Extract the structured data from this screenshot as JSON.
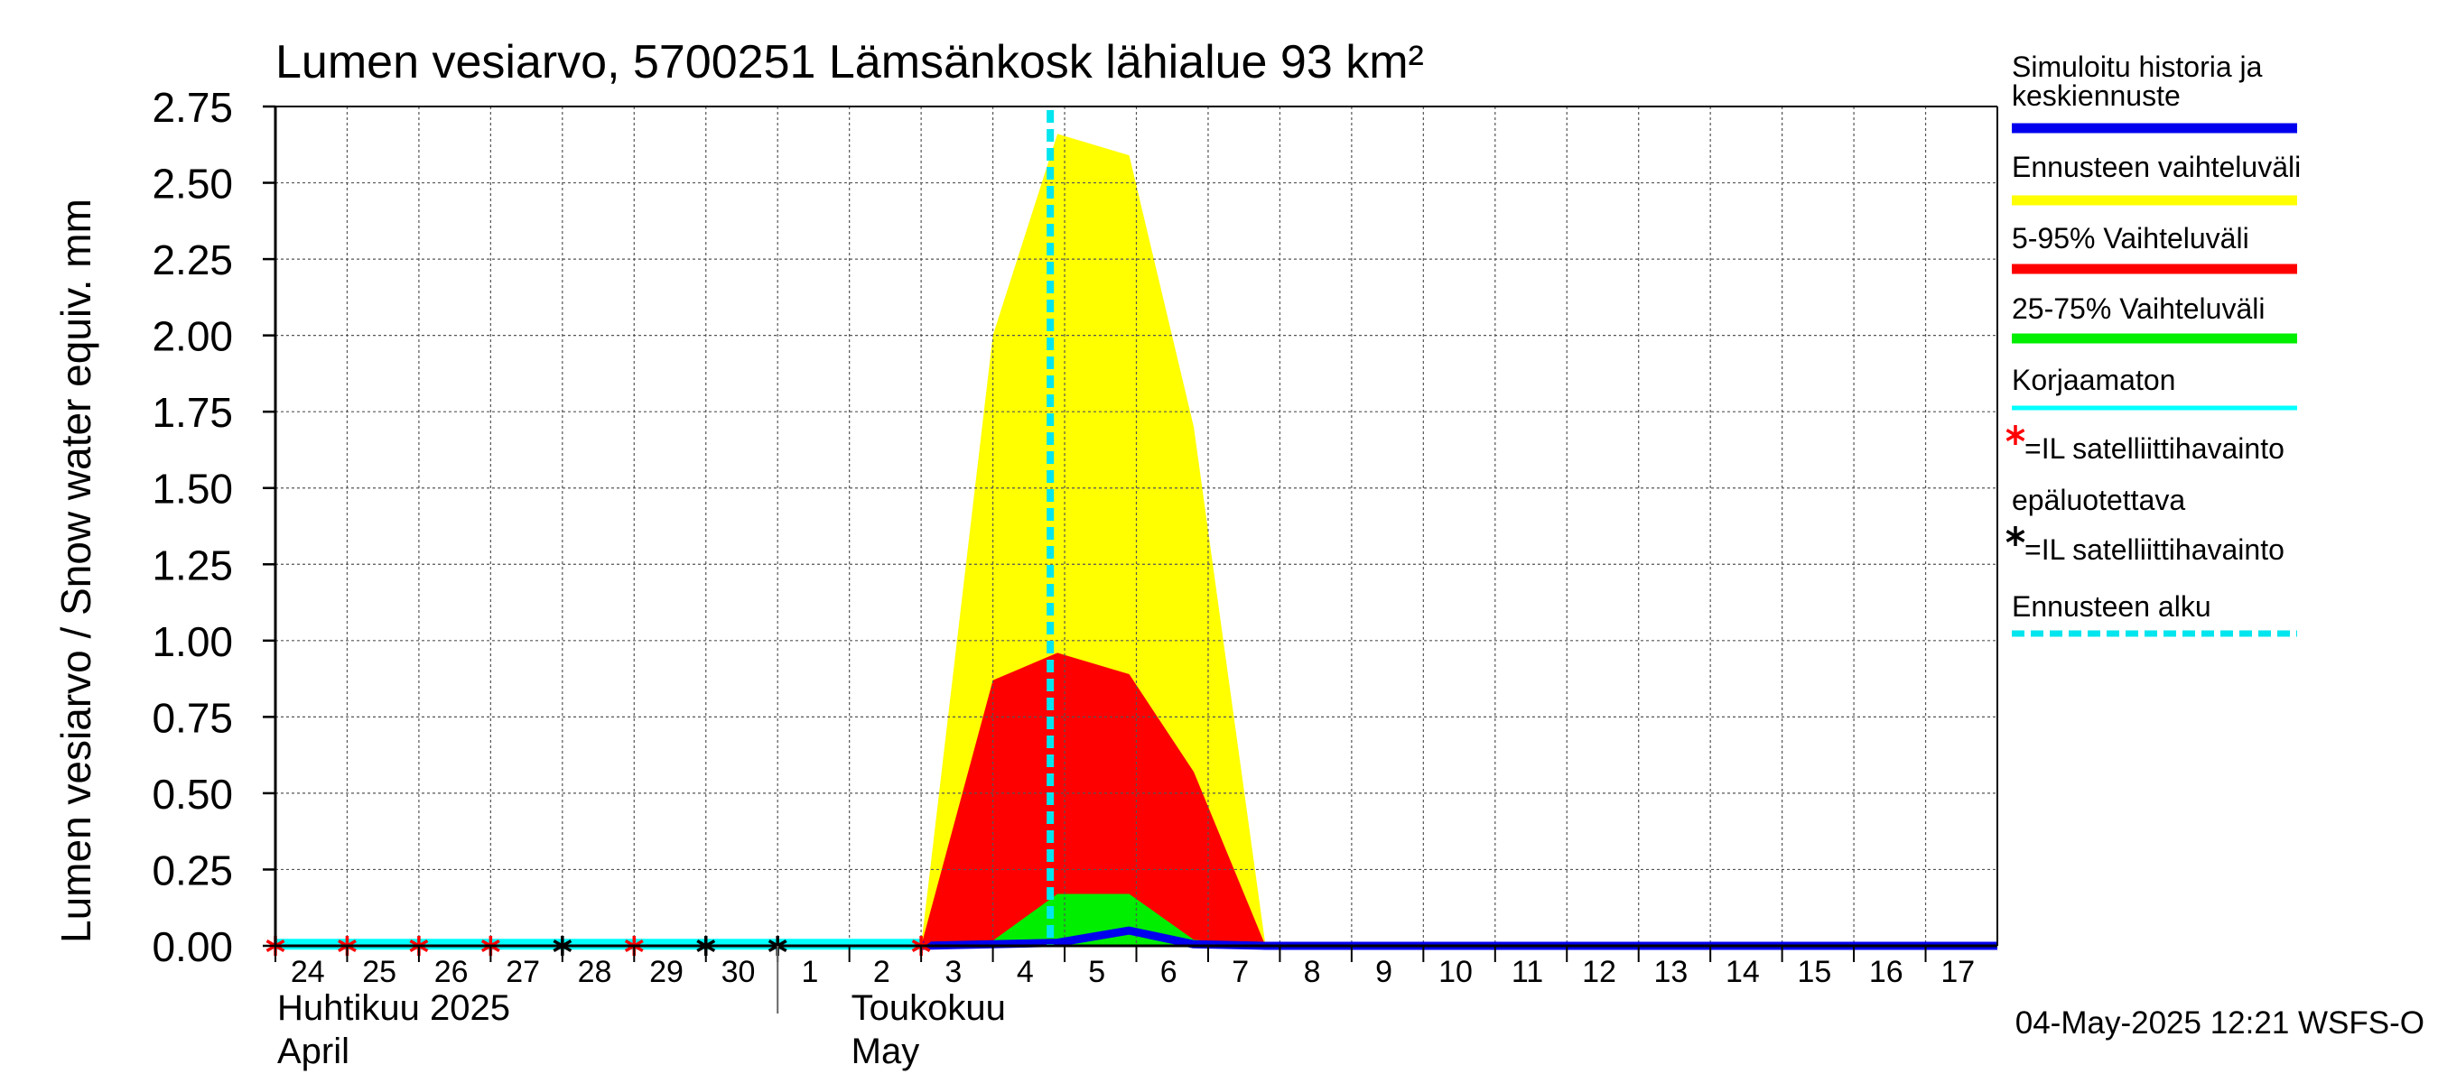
{
  "chart_data": {
    "type": "area",
    "title": "Lumen vesiarvo, 5700251 Lämsänkosk lähialue 93 km²",
    "ylabel": "Lumen vesiarvo / Snow water equiv.    mm",
    "ylim": [
      0,
      2.75
    ],
    "yticks": [
      "0.00",
      "0.25",
      "0.50",
      "0.75",
      "1.00",
      "1.25",
      "1.50",
      "1.75",
      "2.00",
      "2.25",
      "2.50",
      "2.75"
    ],
    "x_start_day": 24,
    "x_end_day": 48,
    "day_labels": [
      "24",
      "25",
      "26",
      "27",
      "28",
      "29",
      "30",
      "1",
      "2",
      "3",
      "4",
      "5",
      "6",
      "7",
      "8",
      "9",
      "10",
      "11",
      "12",
      "13",
      "14",
      "15",
      "16",
      "17"
    ],
    "months": [
      {
        "label1": "Huhtikuu  2025",
        "label2": "April"
      },
      {
        "label1": "Toukokuu",
        "label2": "May"
      }
    ],
    "series": [
      {
        "name": "Ennusteen vaihteluväli",
        "color": "#ffff00",
        "upper": [
          [
            33,
            0
          ],
          [
            34.0,
            2.0
          ],
          [
            34.9,
            2.66
          ],
          [
            35.9,
            2.59
          ],
          [
            36.8,
            1.7
          ],
          [
            37.8,
            0
          ],
          [
            48,
            0
          ]
        ],
        "lower": [
          [
            33,
            0
          ],
          [
            48,
            0
          ]
        ]
      },
      {
        "name": "5-95% Vaihteluväli",
        "color": "#ff0000",
        "upper": [
          [
            33,
            0
          ],
          [
            34.0,
            0.87
          ],
          [
            34.9,
            0.96
          ],
          [
            35.9,
            0.89
          ],
          [
            36.8,
            0.57
          ],
          [
            37.8,
            0
          ],
          [
            48,
            0
          ]
        ],
        "lower": [
          [
            33,
            0
          ],
          [
            48,
            0
          ]
        ]
      },
      {
        "name": "25-75% Vaihteluväli",
        "color": "#00ee00",
        "upper": [
          [
            33.9,
            0
          ],
          [
            34.9,
            0.17
          ],
          [
            35.9,
            0.17
          ],
          [
            36.8,
            0.02
          ],
          [
            37.8,
            0
          ]
        ],
        "lower": [
          [
            33.9,
            0
          ],
          [
            37.8,
            0
          ]
        ]
      }
    ],
    "median": {
      "name": "Simuloitu historia ja keskiennuste",
      "color": "#0000ee",
      "points": [
        [
          33,
          0
        ],
        [
          34.9,
          0.01
        ],
        [
          35.9,
          0.05
        ],
        [
          36.8,
          0.005
        ],
        [
          37.8,
          0
        ],
        [
          48,
          0
        ]
      ]
    },
    "uncorrected": {
      "name": "Korjaamaton",
      "color": "#00ffff",
      "points": [
        [
          24,
          0.005
        ],
        [
          33,
          0.005
        ]
      ]
    },
    "forecast_start_day": 34.8,
    "obs_unreliable": [
      24,
      25,
      26,
      27,
      29,
      33
    ],
    "obs_reliable": [
      28,
      30,
      31
    ],
    "legend": [
      {
        "label": "Simuloitu historia ja\nkeskiennuste",
        "color": "#0000ee",
        "kind": "line"
      },
      {
        "label": "Ennusteen vaihteluväli",
        "color": "#ffff00",
        "kind": "line"
      },
      {
        "label": "5-95% Vaihteluväli",
        "color": "#ff0000",
        "kind": "line"
      },
      {
        "label": "25-75% Vaihteluväli",
        "color": "#00ee00",
        "kind": "line"
      },
      {
        "label": "Korjaamaton",
        "color": "#00ffff",
        "kind": "thin"
      },
      {
        "label": "=IL satelliittihavainto\nepäluotettava",
        "color": "#ff0000",
        "kind": "star"
      },
      {
        "label": "=IL satelliittihavainto",
        "color": "#000000",
        "kind": "star"
      },
      {
        "label": "Ennusteen alku",
        "color": "#00e5ee",
        "kind": "dash"
      }
    ],
    "timestamp": "04-May-2025 12:21 WSFS-O"
  }
}
